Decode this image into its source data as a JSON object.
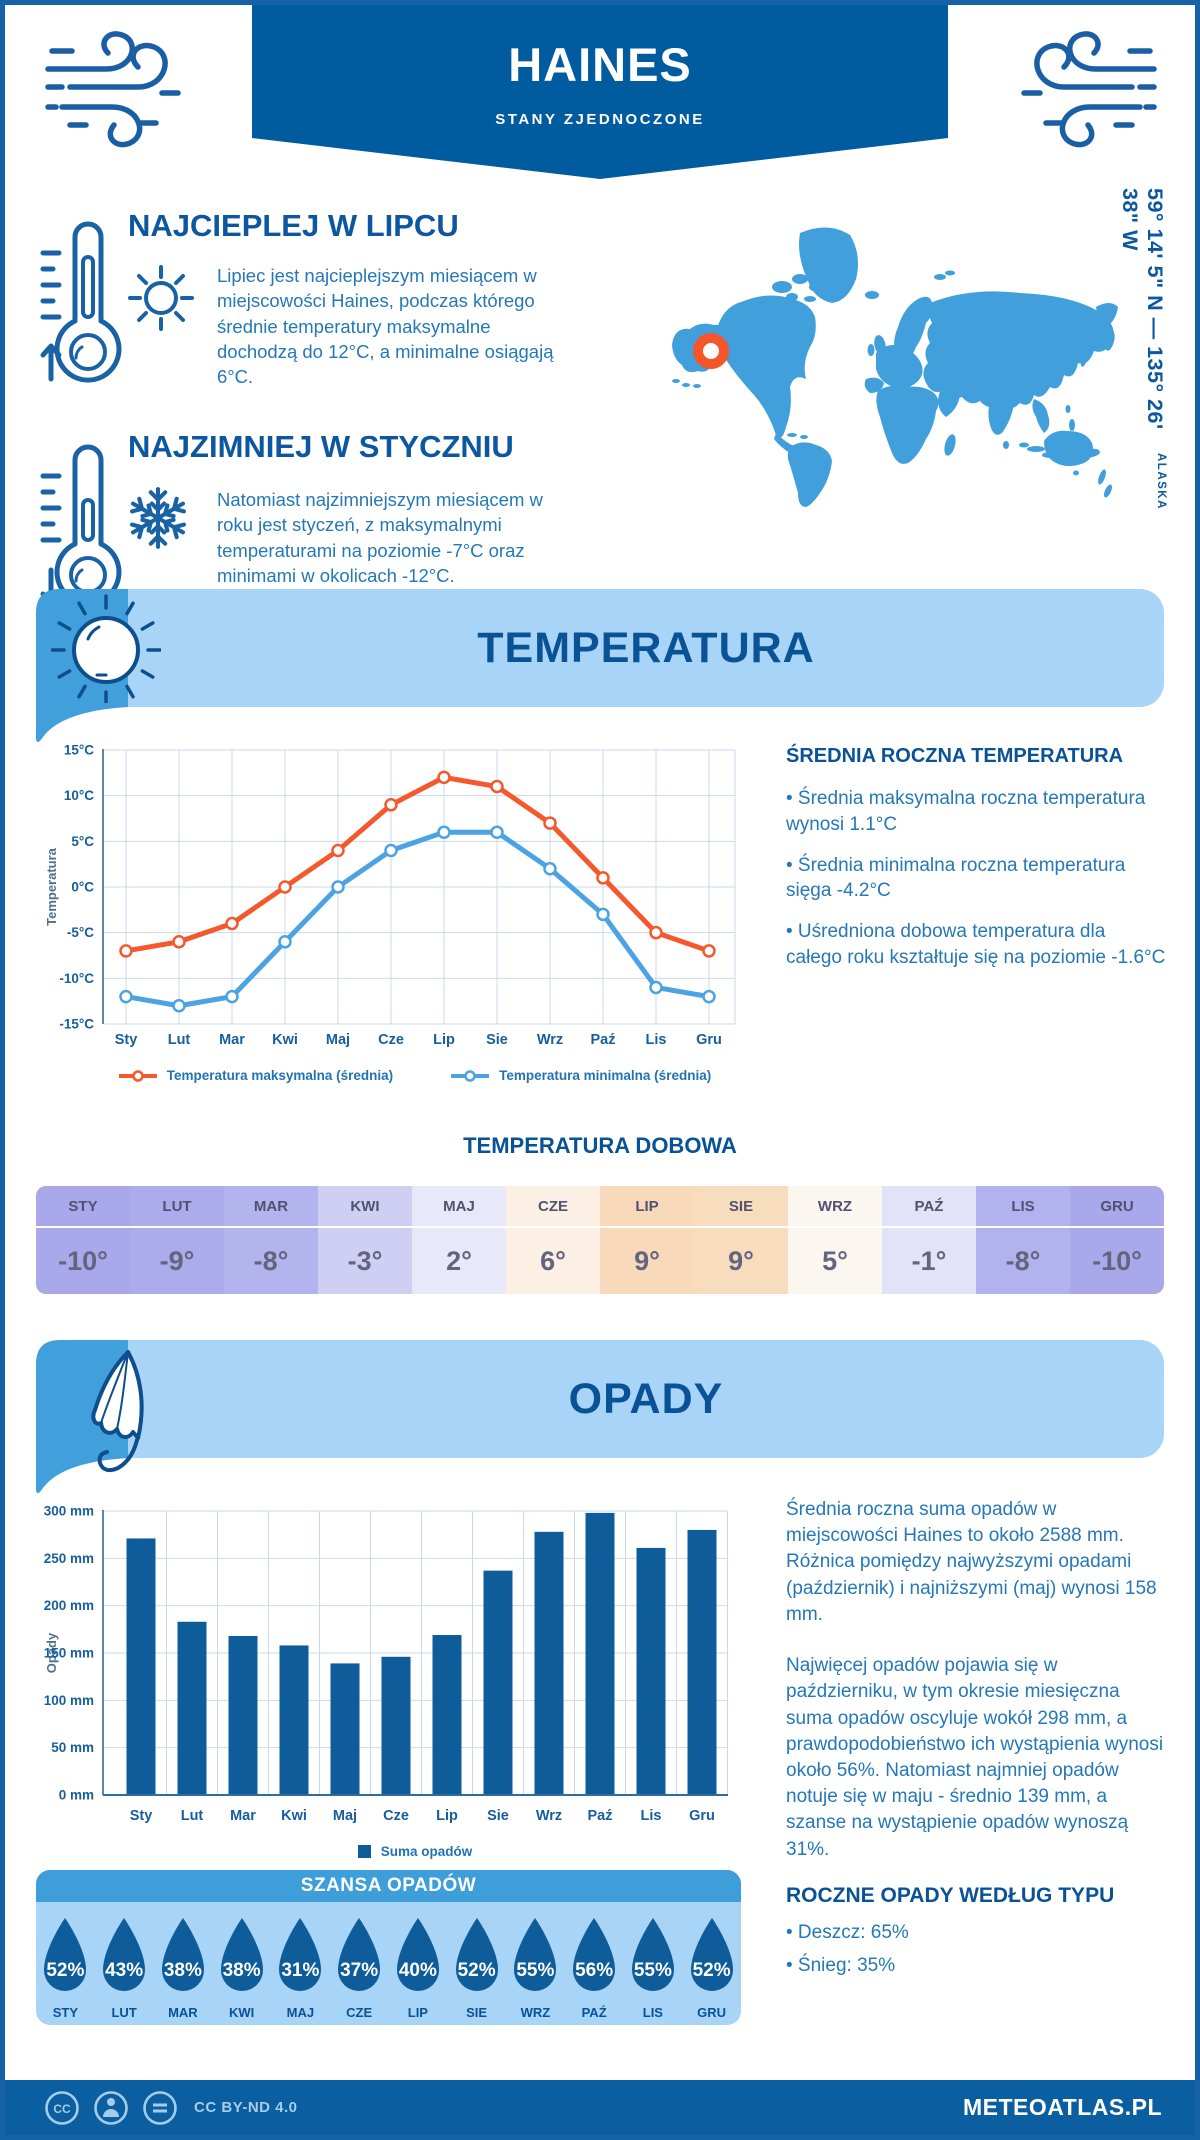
{
  "header": {
    "title": "HAINES",
    "subtitle": "STANY ZJEDNOCZONE"
  },
  "geo": {
    "coordinates": "59° 14' 5\" N — 135° 26' 38\" W",
    "region": "ALASKA"
  },
  "highlights": {
    "warmest": {
      "title": "NAJCIEPLEJ W LIPCU",
      "text": "Lipiec jest najcieplejszym miesiącem w miejscowości Haines, podczas którego średnie temperatury maksymalne dochodzą do 12°C, a minimalne osiągają 6°C."
    },
    "coldest": {
      "title": "NAJZIMNIEJ W STYCZNIU",
      "text": "Natomiast najzimniejszym miesiącem w roku jest styczeń, z maksymalnymi temperaturami na poziomie -7°C oraz minimami w okolicach -12°C."
    }
  },
  "temperature_section": {
    "banner_title": "TEMPERATURA",
    "annual": {
      "heading": "ŚREDNIA ROCZNA TEMPERATURA",
      "bullets": [
        "• Średnia maksymalna roczna temperatura wynosi 1.1°C",
        "• Średnia minimalna roczna temperatura sięga -4.2°C",
        "• Uśredniona dobowa temperatura dla całego roku kształtuje się na poziomie -1.6°C"
      ]
    },
    "daily": {
      "heading": "TEMPERATURA DOBOWA",
      "months": [
        "STY",
        "LUT",
        "MAR",
        "KWI",
        "MAJ",
        "CZE",
        "LIP",
        "SIE",
        "WRZ",
        "PAŹ",
        "LIS",
        "GRU"
      ],
      "values": [
        "-10°",
        "-9°",
        "-8°",
        "-3°",
        "2°",
        "6°",
        "9°",
        "9°",
        "5°",
        "-1°",
        "-8°",
        "-10°"
      ],
      "colors": [
        "#A8A8EA",
        "#ACACEC",
        "#B3B3EE",
        "#CFCFF4",
        "#E8E8FB",
        "#FCEFE3",
        "#F8D9BA",
        "#F8DCBE",
        "#FBF6F0",
        "#E2E2F9",
        "#B2B2EE",
        "#A8A8EA"
      ]
    }
  },
  "precipitation_section": {
    "banner_title": "OPADY",
    "paragraphs": [
      "Średnia roczna suma opadów w miejscowości Haines to około 2588 mm. Różnica pomiędzy najwyższymi opadami (październik) i najniższymi (maj) wynosi 158 mm.",
      "Najwięcej opadów pojawia się w październiku, w tym okresie miesięczna suma opadów oscyluje wokół 298 mm, a prawdopodobieństwo ich wystąpienia wynosi około 56%. Natomiast najmniej opadów notuje się w maju - średnio 139 mm, a szanse na wystąpienie opadów wynoszą 31%."
    ],
    "by_type": {
      "heading": "ROCZNE OPADY WEDŁUG TYPU",
      "bullets": [
        "• Deszcz: 65%",
        "• Śnieg: 35%"
      ]
    },
    "chance": {
      "title": "SZANSA OPADÓW",
      "months": [
        "STY",
        "LUT",
        "MAR",
        "KWI",
        "MAJ",
        "CZE",
        "LIP",
        "SIE",
        "WRZ",
        "PAŹ",
        "LIS",
        "GRU"
      ],
      "values": [
        "52%",
        "43%",
        "38%",
        "38%",
        "31%",
        "37%",
        "40%",
        "52%",
        "55%",
        "56%",
        "55%",
        "52%"
      ],
      "droplet_color": "#0E5C99"
    }
  },
  "footer": {
    "license": "CC BY-ND 4.0",
    "brand": "METEOATLAS.PL"
  },
  "colors": {
    "primary": "#005C9E",
    "accent_light": "#A8D4F7",
    "accent_medium": "#41A0DC",
    "navy": "#0A5296",
    "text_blue": "#2478B8",
    "orange": "#F4582C",
    "bar_blue": "#0E5C99"
  },
  "chart_data": [
    {
      "type": "line",
      "title": "",
      "categories": [
        "Sty",
        "Lut",
        "Mar",
        "Kwi",
        "Maj",
        "Cze",
        "Lip",
        "Sie",
        "Wrz",
        "Paź",
        "Lis",
        "Gru"
      ],
      "series": [
        {
          "name": "Temperatura maksymalna (średnia)",
          "color": "#F4582C",
          "values": [
            -7,
            -6,
            -4,
            0,
            4,
            9,
            12,
            11,
            7,
            1,
            -5,
            -7
          ]
        },
        {
          "name": "Temperatura minimalna (średnia)",
          "color": "#4BA3E3",
          "values": [
            -12,
            -13,
            -12,
            -6,
            0,
            4,
            6,
            6,
            2,
            -3,
            -11,
            -12
          ]
        }
      ],
      "xlabel": "",
      "ylabel": "Temperatura",
      "ylim": [
        -15,
        15
      ],
      "ytick_step": 5,
      "yunit": "°C",
      "grid": true,
      "legend_position": "bottom"
    },
    {
      "type": "bar",
      "title": "",
      "categories": [
        "Sty",
        "Lut",
        "Mar",
        "Kwi",
        "Maj",
        "Cze",
        "Lip",
        "Sie",
        "Wrz",
        "Paź",
        "Lis",
        "Gru"
      ],
      "values": [
        271,
        183,
        168,
        158,
        139,
        146,
        169,
        237,
        278,
        298,
        261,
        280
      ],
      "series_name": "Suma opadów",
      "color": "#0E5C99",
      "xlabel": "",
      "ylabel": "Opady",
      "ylim": [
        0,
        300
      ],
      "ytick_step": 50,
      "yunit": " mm",
      "grid": true,
      "legend_position": "bottom"
    }
  ]
}
